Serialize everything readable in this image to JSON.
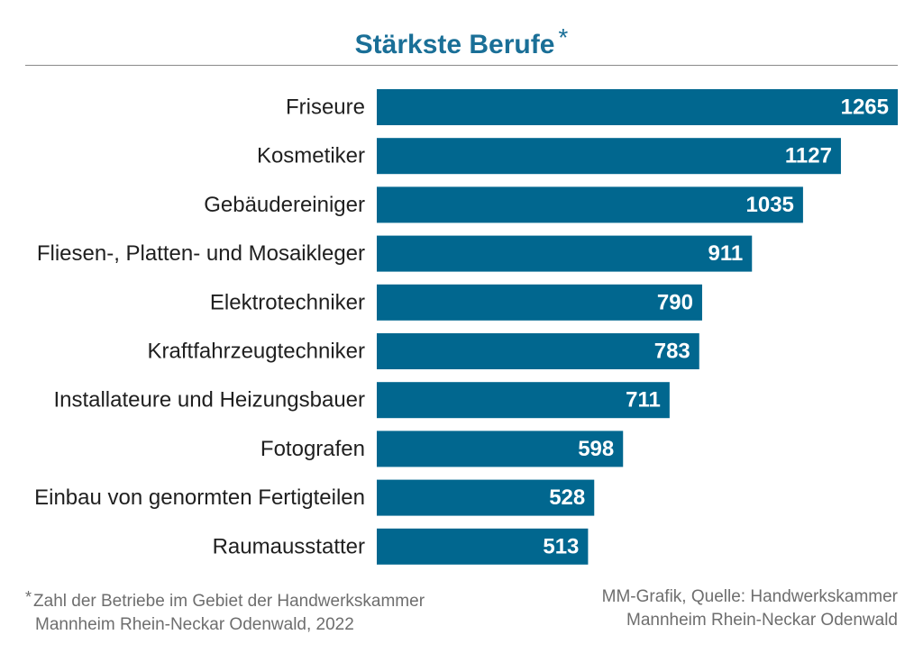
{
  "title": "Stärkste Berufe",
  "title_marker": "*",
  "footnote": {
    "marker": "*",
    "line1": "Zahl der Betriebe im Gebiet der Handwerkskammer",
    "line2": "Mannheim Rhein-Neckar Odenwald, 2022"
  },
  "source": {
    "line1": "MM-Grafik, Quelle: Handwerkskammer",
    "line2": "Mannheim Rhein-Neckar Odenwald"
  },
  "colors": {
    "bar": "#01678f",
    "title": "#1a6f97"
  },
  "chart_data": {
    "type": "bar",
    "orientation": "horizontal",
    "title": "Stärkste Berufe",
    "categories": [
      "Friseure",
      "Kosmetiker",
      "Gebäudereiniger",
      "Fliesen-, Platten- und Mosaikleger",
      "Elektrotechniker",
      "Kraftfahrzeugtechniker",
      "Installateure und Heizungsbauer",
      "Fotografen",
      "Einbau von genormten Fertigteilen",
      "Raumausstatter"
    ],
    "values": [
      1265,
      1127,
      1035,
      911,
      790,
      783,
      711,
      598,
      528,
      513
    ],
    "xlim": [
      0,
      1265
    ],
    "grid": false,
    "legend": "none",
    "data_labels": "inside-end"
  }
}
